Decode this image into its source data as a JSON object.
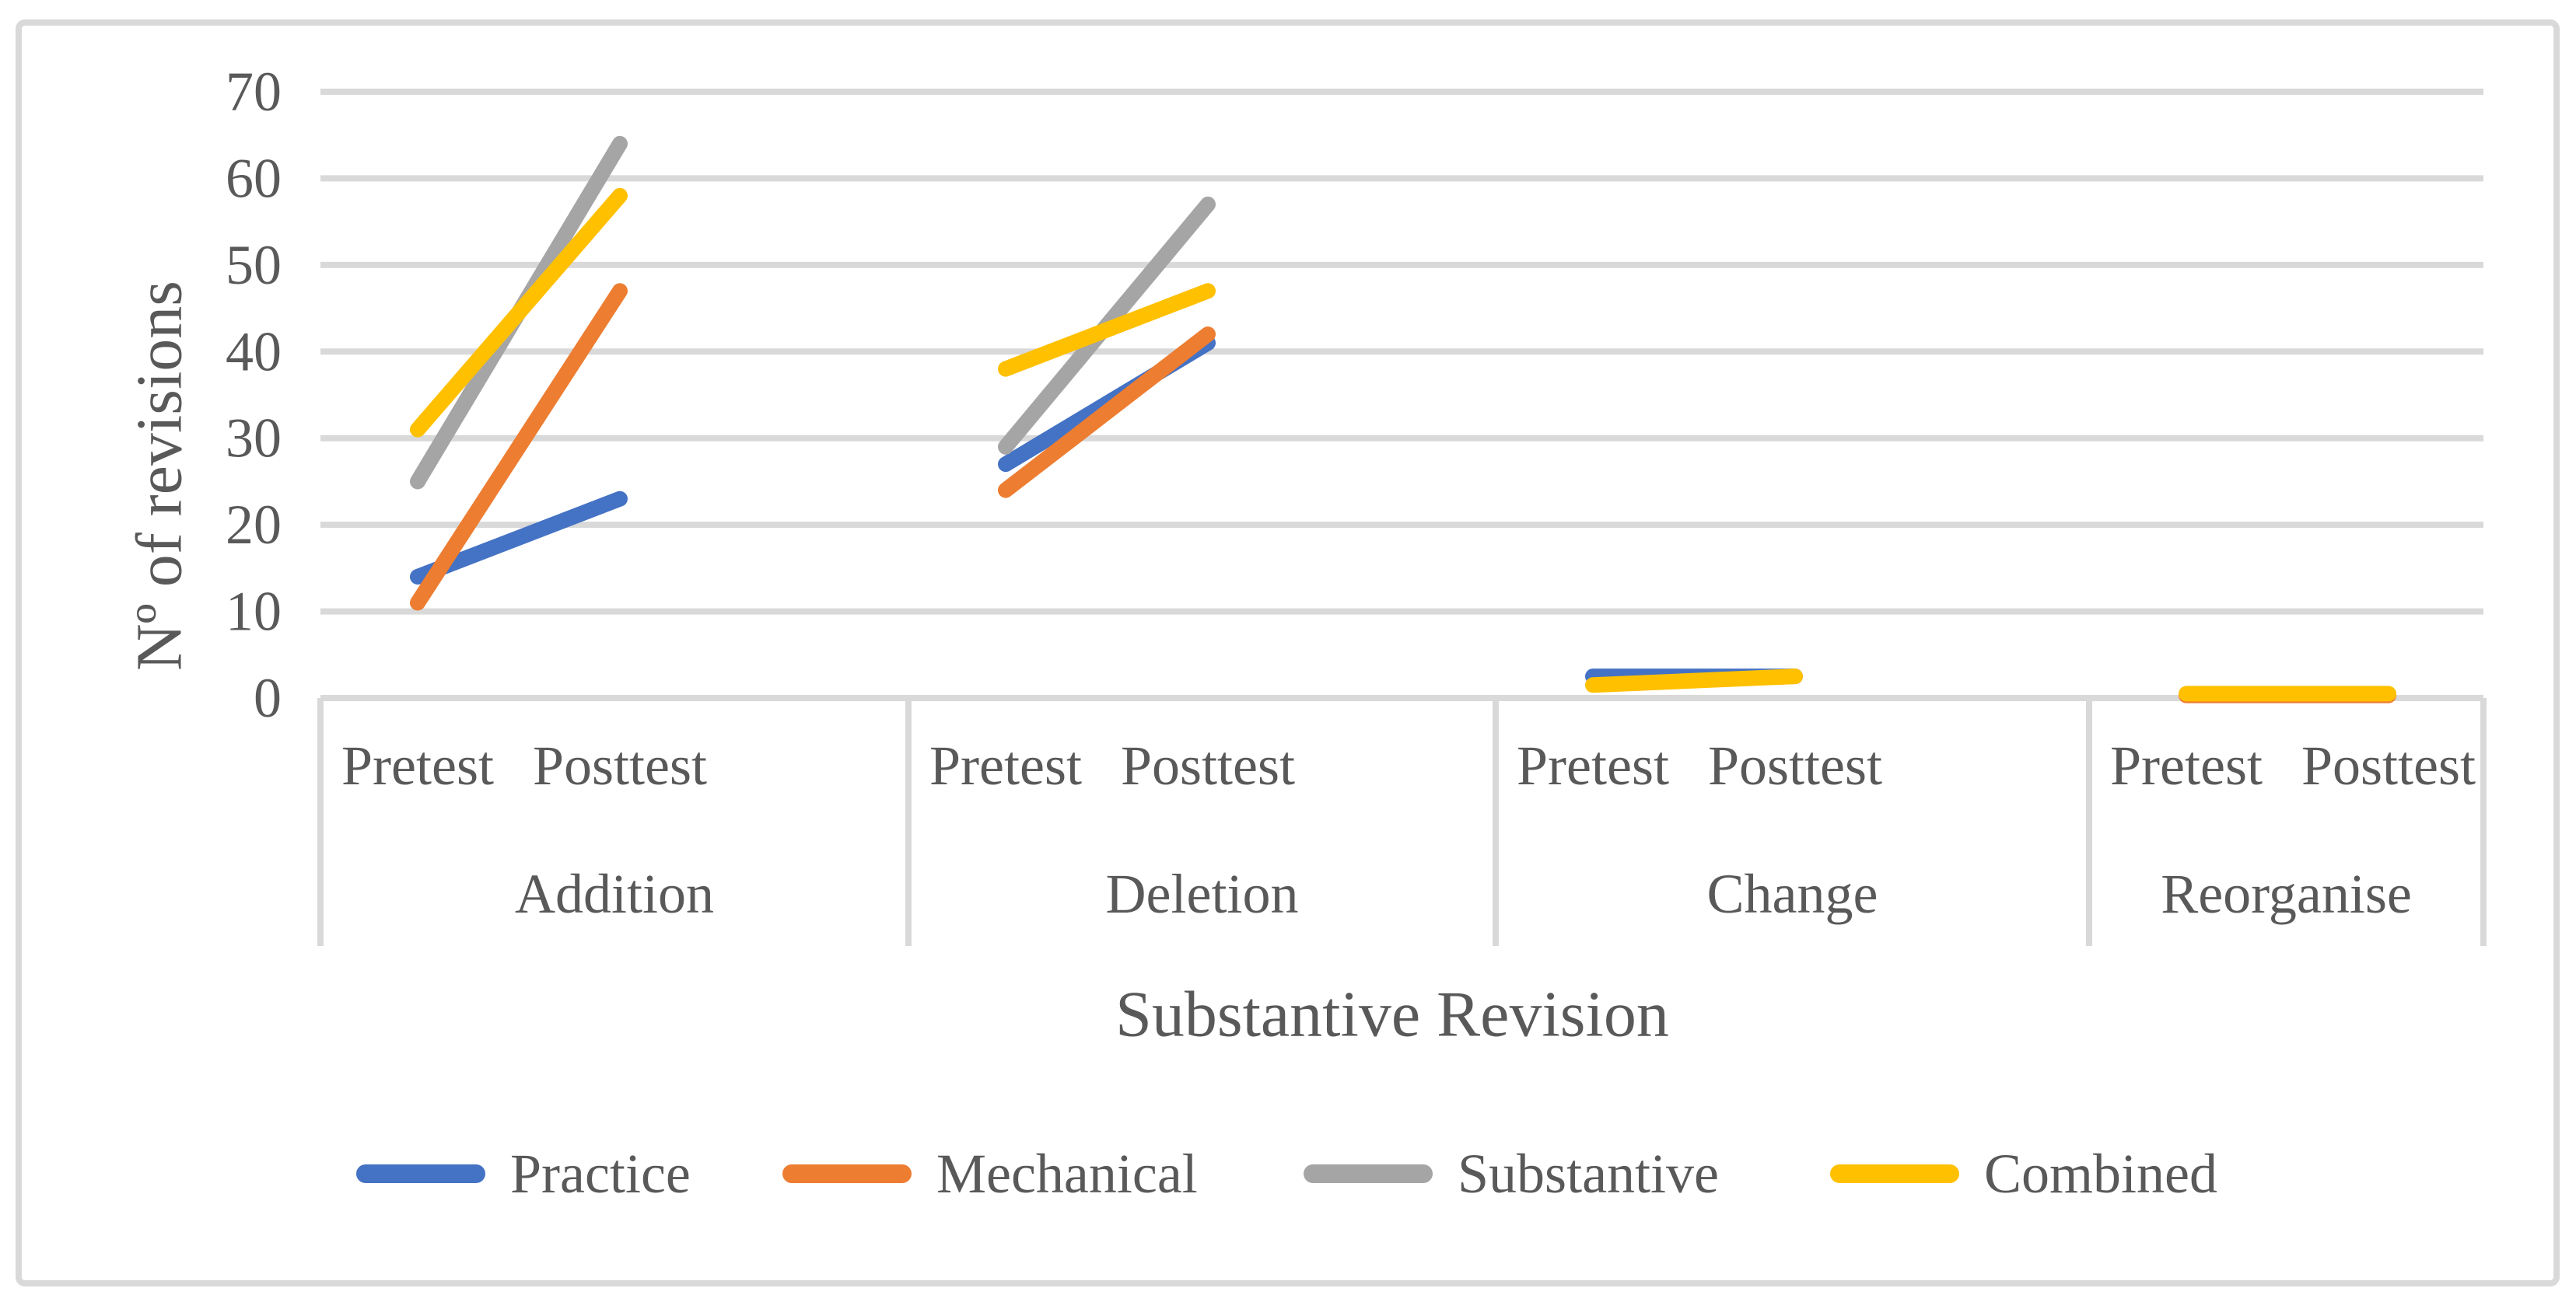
{
  "figure": {
    "border_color": "#D9D9D9",
    "background": "#FFFFFF",
    "text_color": "#595959",
    "gridline_color": "#D9D9D9"
  },
  "chart_data": {
    "type": "line",
    "title": "",
    "xlabel": "Substantive Revision",
    "ylabel": "Nº of revisions",
    "ylim": [
      0,
      70
    ],
    "yticks": [
      70,
      60,
      50,
      40,
      30,
      20,
      10,
      0
    ],
    "grid": true,
    "legend_position": "bottom",
    "groups": [
      "Addition",
      "Deletion",
      "Change",
      "Reorganise"
    ],
    "x_sublabels": [
      "Pretest",
      "Posttest"
    ],
    "series": [
      {
        "name": "Practice",
        "color": "#4472C4",
        "values": [
          [
            14,
            23
          ],
          [
            27,
            41
          ],
          [
            2.5,
            2.5
          ],
          null
        ]
      },
      {
        "name": "Mechanical",
        "color": "#ED7D31",
        "values": [
          [
            11,
            47
          ],
          [
            24,
            42
          ],
          null,
          [
            0.3,
            0.3
          ]
        ]
      },
      {
        "name": "Substantive",
        "color": "#A5A5A5",
        "values": [
          [
            25,
            64
          ],
          [
            29,
            57
          ],
          null,
          null
        ]
      },
      {
        "name": "Combined",
        "color": "#FFC000",
        "values": [
          [
            31,
            58
          ],
          [
            38,
            47
          ],
          [
            1.5,
            2.5
          ],
          [
            0.5,
            0.5
          ]
        ]
      }
    ]
  }
}
